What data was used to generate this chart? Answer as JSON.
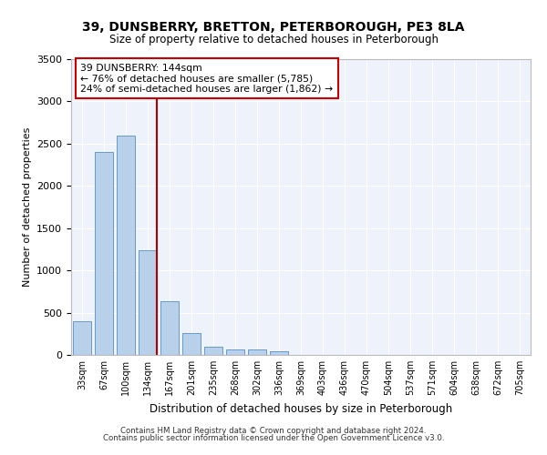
{
  "title1": "39, DUNSBERRY, BRETTON, PETERBOROUGH, PE3 8LA",
  "title2": "Size of property relative to detached houses in Peterborough",
  "xlabel": "Distribution of detached houses by size in Peterborough",
  "ylabel": "Number of detached properties",
  "categories": [
    "33sqm",
    "67sqm",
    "100sqm",
    "134sqm",
    "167sqm",
    "201sqm",
    "235sqm",
    "268sqm",
    "302sqm",
    "336sqm",
    "369sqm",
    "403sqm",
    "436sqm",
    "470sqm",
    "504sqm",
    "537sqm",
    "571sqm",
    "604sqm",
    "638sqm",
    "672sqm",
    "705sqm"
  ],
  "values": [
    400,
    2400,
    2600,
    1240,
    640,
    260,
    100,
    60,
    60,
    45,
    0,
    0,
    0,
    0,
    0,
    0,
    0,
    0,
    0,
    0,
    0
  ],
  "bar_color": "#b8d0ea",
  "bar_edge_color": "#6699cc",
  "annotation_line1": "39 DUNSBERRY: 144sqm",
  "annotation_line2": "← 76% of detached houses are smaller (5,785)",
  "annotation_line3": "24% of semi-detached houses are larger (1,862) →",
  "vline_color": "#aa0000",
  "annotation_box_edge": "#cc0000",
  "background_color": "#eef2fb",
  "grid_color": "#ffffff",
  "footer1": "Contains HM Land Registry data © Crown copyright and database right 2024.",
  "footer2": "Contains public sector information licensed under the Open Government Licence v3.0.",
  "ylim": [
    0,
    3500
  ],
  "yticks": [
    0,
    500,
    1000,
    1500,
    2000,
    2500,
    3000,
    3500
  ],
  "vline_bin_index": 3
}
